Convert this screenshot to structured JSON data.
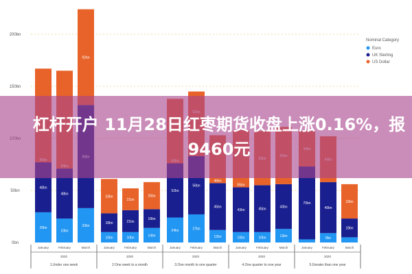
{
  "chart_data": {
    "type": "bar",
    "stacked": true,
    "ylim": [
      0,
      235
    ],
    "yticks": [
      0,
      50,
      100,
      150,
      200
    ],
    "ytick_labels": [
      "0bn",
      "50bn",
      "100bn",
      "150bn",
      "200bn"
    ],
    "grid": true,
    "legend_position": "right",
    "legend_title": "Nominal Category",
    "groups": [
      "1.Under one week",
      "2.One week to a month",
      "3.One month to one quarter",
      "4.One quarter to one year",
      "5.Greater than one year"
    ],
    "year": "2020",
    "categories": [
      "January",
      "February",
      "March",
      "January",
      "February",
      "March",
      "January",
      "February",
      "March",
      "January",
      "February",
      "March",
      "January",
      "February",
      "March"
    ],
    "series": [
      {
        "name": "Euro",
        "color": "#2196f3",
        "values": [
          29,
          23,
          33,
          10,
          10,
          14,
          24,
          27,
          12,
          10,
          10,
          13,
          3,
          9,
          5
        ]
      },
      {
        "name": "UK Sterling",
        "color": "#1a1f8f",
        "values": [
          48,
          48,
          99,
          18,
          21,
          18,
          52,
          56,
          45,
          43,
          45,
          43,
          70,
          49,
          18
        ]
      },
      {
        "name": "US Dollar",
        "color": "#e8632a",
        "values": [
          90,
          94,
          92,
          33,
          21,
          26,
          62,
          62,
          46,
          55,
          52,
          55,
          34,
          44,
          33
        ]
      }
    ]
  },
  "caption": "杠杆开户 11月28日红枣期货收盘上涨0.16%，报9460元"
}
